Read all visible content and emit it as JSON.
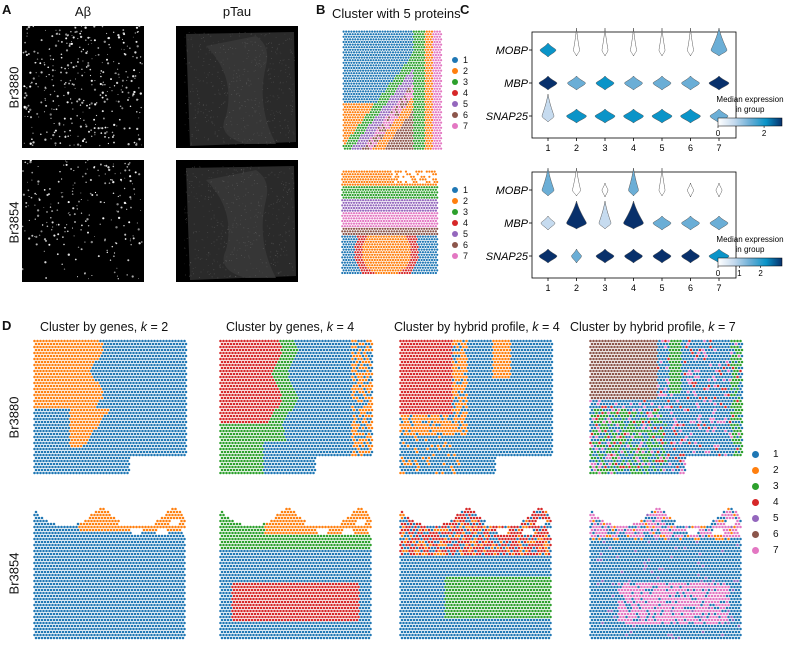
{
  "panel_labels": {
    "a": "A",
    "b": "B",
    "c": "C",
    "d": "D"
  },
  "panel_a": {
    "columns": [
      "Aβ",
      "pTau"
    ],
    "rows": [
      "Br3880",
      "Br3854"
    ]
  },
  "panel_b": {
    "title": "Cluster with 5 proteins",
    "legend": [
      "1",
      "2",
      "3",
      "4",
      "5",
      "6",
      "7"
    ]
  },
  "panel_c": {
    "genes": [
      "MOBP",
      "MBP",
      "SNAP25"
    ],
    "groups": [
      "1",
      "2",
      "3",
      "4",
      "5",
      "6",
      "7"
    ],
    "colorbar_title_line1": "Median expression",
    "colorbar_title_line2": "in group",
    "colorbar_ticks_top": [
      "0",
      "2"
    ],
    "colorbar_ticks_bottom": [
      "0",
      "1",
      "2"
    ]
  },
  "panel_d": {
    "titles": [
      {
        "text": "Cluster by genes, ",
        "k": "k",
        "eq": " = 2"
      },
      {
        "text": "Cluster by genes, ",
        "k": "k",
        "eq": " = 4"
      },
      {
        "text": "Cluster by hybrid profile, ",
        "k": "k",
        "eq": " = 4"
      },
      {
        "text": "Cluster by hybrid profile, ",
        "k": "k",
        "eq": " = 7"
      }
    ],
    "rows": [
      "Br3880",
      "Br3854"
    ],
    "legend": [
      "1",
      "2",
      "3",
      "4",
      "5",
      "6",
      "7"
    ]
  },
  "palette": [
    "#1f77b4",
    "#ff7f0e",
    "#2ca02c",
    "#d62728",
    "#9467bd",
    "#8c564b",
    "#e377c2"
  ],
  "cmap": [
    "#ffffff",
    "#c6dbef",
    "#6baed6",
    "#0a94c8",
    "#08306b"
  ]
}
